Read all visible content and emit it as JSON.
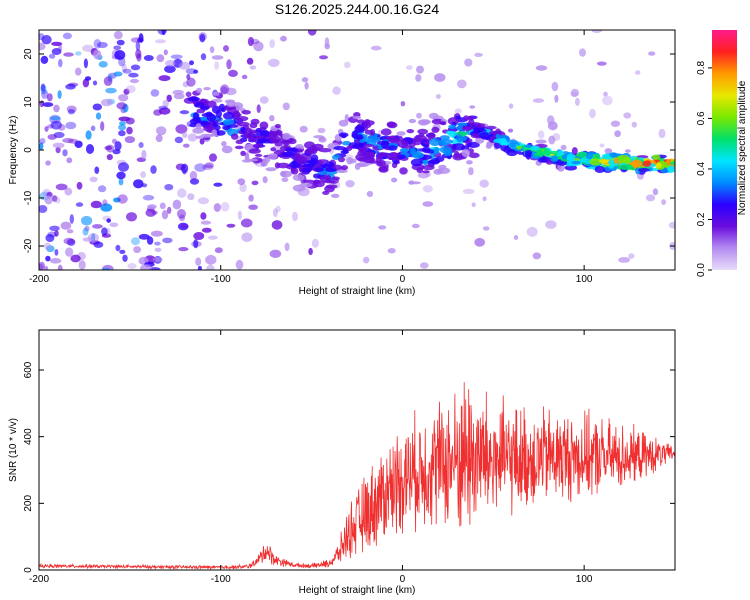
{
  "figure_title": "S126.2025.244.00.16.G24",
  "chart_data": [
    {
      "type": "heatmap",
      "title": "S126.2025.244.00.16.G24",
      "xlabel": "Height of straight line (km)",
      "ylabel": "Frequency (Hz)",
      "xlim": [
        -200,
        150
      ],
      "ylim": [
        -25,
        25
      ],
      "xticks": [
        -200,
        -100,
        0,
        100
      ],
      "yticks": [
        -20,
        -10,
        0,
        10,
        20
      ],
      "xtick_labels": [
        "-200",
        "-100",
        "0",
        "100"
      ],
      "ytick_labels": [
        "-20",
        "-10",
        "0",
        "10",
        "20"
      ],
      "colorbar": {
        "label": "Normalized spectral amplitude",
        "range": [
          0,
          0.95
        ],
        "ticks": [
          0,
          0.2,
          0.4,
          0.6,
          0.8
        ],
        "tick_labels": [
          "0.0",
          "0.2",
          "0.4",
          "0.6",
          "0.8"
        ],
        "colors": [
          "#e7dcfa",
          "#b48cf0",
          "#6a0dde",
          "#2b00ff",
          "#008cff",
          "#00e5ff",
          "#00e06a",
          "#7ae800",
          "#e8e800",
          "#ff9a00",
          "#ff2020",
          "#ff1a8c"
        ]
      },
      "signal_trace": {
        "x_km": [
          -115,
          -100,
          -90,
          -80,
          -70,
          -60,
          -50,
          -40,
          -30,
          -20,
          -10,
          0,
          10,
          20,
          30,
          40,
          50,
          60,
          70,
          80,
          90,
          100,
          110,
          120,
          130,
          140,
          150
        ],
        "freq_hz": [
          8,
          6,
          4,
          2,
          1,
          -2,
          -3,
          -5,
          3,
          2,
          1,
          0,
          -1,
          1,
          3,
          4,
          3,
          1,
          0,
          -1,
          -2,
          -2,
          -2.5,
          -2.5,
          -3,
          -2.5,
          -3
        ],
        "amplitude": [
          0.3,
          0.35,
          0.3,
          0.3,
          0.25,
          0.25,
          0.3,
          0.3,
          0.3,
          0.35,
          0.35,
          0.3,
          0.35,
          0.4,
          0.45,
          0.35,
          0.45,
          0.5,
          0.6,
          0.65,
          0.6,
          0.7,
          0.75,
          0.8,
          0.85,
          0.9,
          0.8
        ]
      },
      "noise_floor": 0.05
    },
    {
      "type": "line",
      "xlabel": "Height of straight line (km)",
      "ylabel": "SNR (10 * v/v)",
      "color": "#f03030",
      "xlim": [
        -200,
        150
      ],
      "ylim": [
        0,
        720
      ],
      "xticks": [
        -200,
        -100,
        0,
        100
      ],
      "yticks": [
        0,
        200,
        400,
        600
      ],
      "xtick_labels": [
        "-200",
        "-100",
        "0",
        "100"
      ],
      "ytick_labels": [
        "0",
        "200",
        "400",
        "600"
      ],
      "envelope": {
        "x": [
          -200,
          -150,
          -100,
          -85,
          -80,
          -75,
          -70,
          -60,
          -50,
          -40,
          -35,
          -30,
          -20,
          -10,
          0,
          10,
          20,
          30,
          35,
          40,
          50,
          60,
          80,
          100,
          120,
          140,
          150
        ],
        "mean": [
          12,
          10,
          8,
          10,
          25,
          60,
          30,
          15,
          12,
          20,
          50,
          110,
          170,
          230,
          280,
          300,
          320,
          330,
          350,
          340,
          330,
          330,
          340,
          340,
          340,
          345,
          350
        ],
        "spread": [
          6,
          6,
          6,
          8,
          15,
          45,
          20,
          8,
          8,
          15,
          40,
          90,
          140,
          170,
          190,
          200,
          220,
          250,
          300,
          260,
          220,
          190,
          170,
          150,
          120,
          60,
          20
        ]
      }
    }
  ]
}
